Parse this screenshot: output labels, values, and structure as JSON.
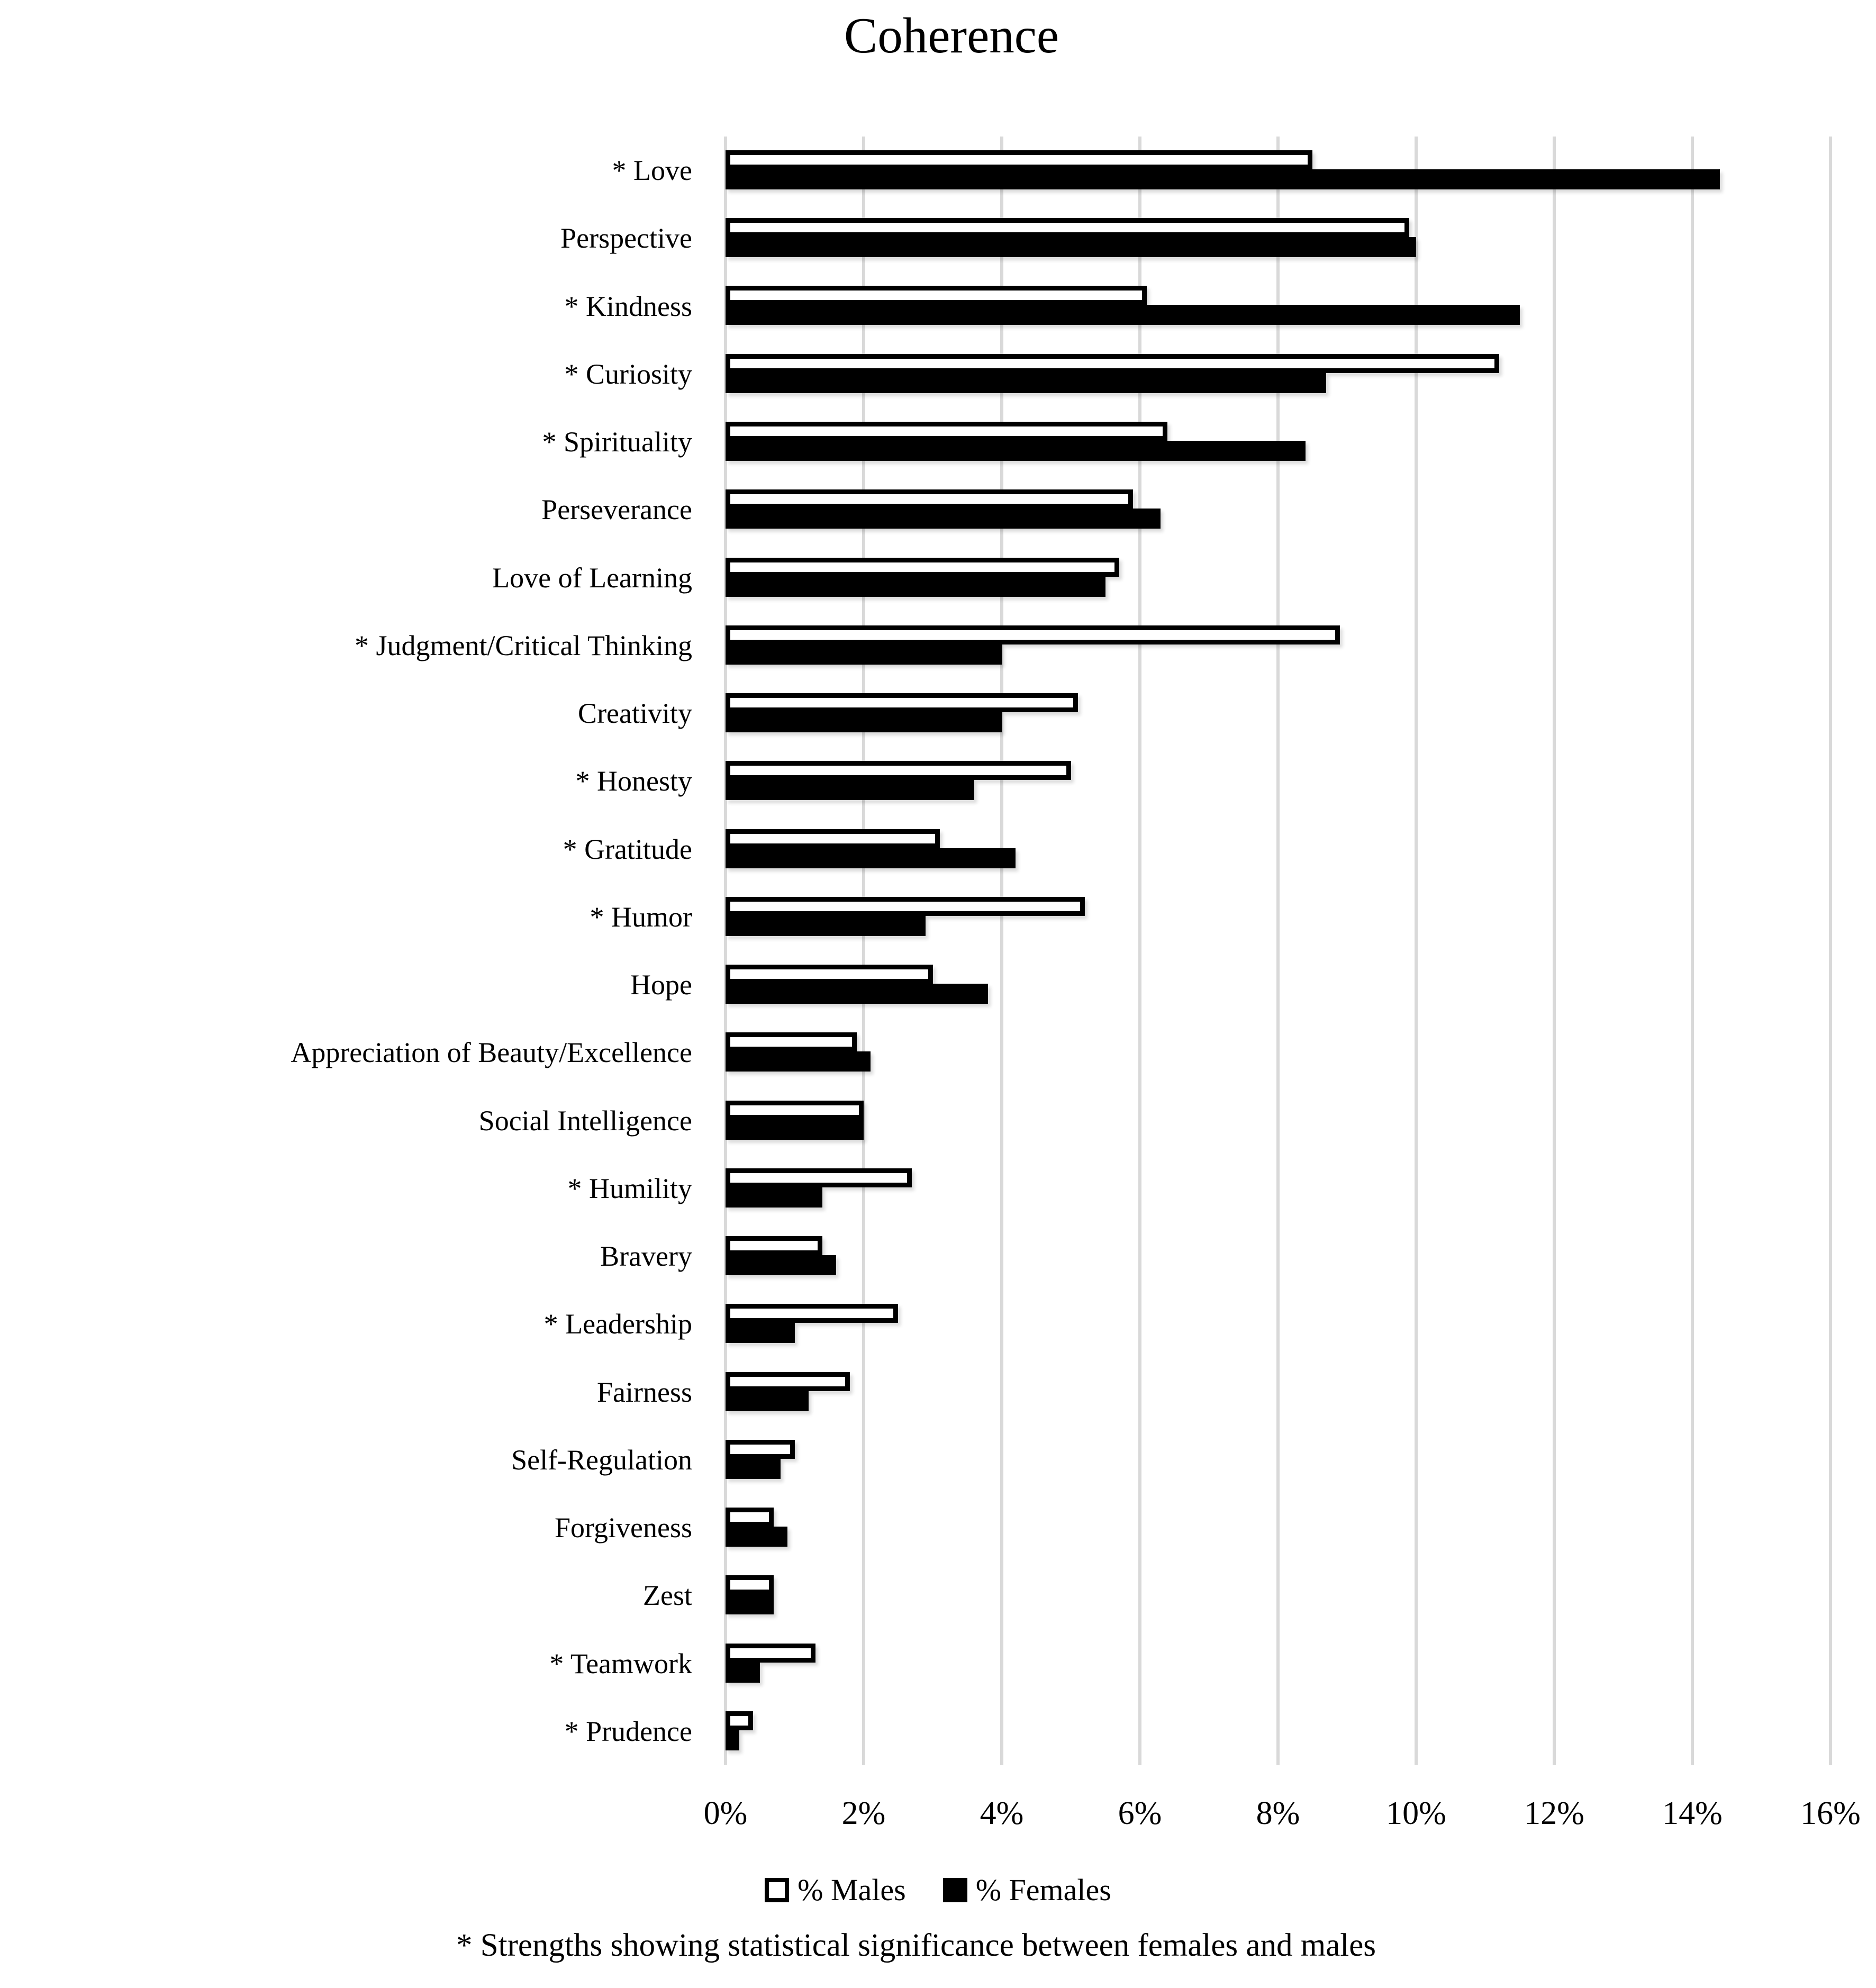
{
  "title": "Coherence",
  "footnote": "* Strengths showing statistical significance between females and males",
  "colors": {
    "male_fill": "#ffffff",
    "female_fill": "#000000",
    "bar_border": "#000000",
    "gridline": "#d9d9d9",
    "text": "#000000"
  },
  "chart_data": {
    "type": "bar",
    "orientation": "horizontal",
    "title": "Coherence",
    "categories": [
      "* Love",
      "Perspective",
      "* Kindness",
      "* Curiosity",
      "* Spirituality",
      "Perseverance",
      "Love of Learning",
      "* Judgment/Critical Thinking",
      "Creativity",
      "* Honesty",
      "* Gratitude",
      "* Humor",
      "Hope",
      "Appreciation of Beauty/Excellence",
      "Social Intelligence",
      "* Humility",
      "Bravery",
      "* Leadership",
      "Fairness",
      "Self-Regulation",
      "Forgiveness",
      "Zest",
      "* Teamwork",
      "* Prudence"
    ],
    "series": [
      {
        "name": "% Males",
        "values": [
          8.5,
          9.9,
          6.1,
          11.2,
          6.4,
          5.9,
          5.7,
          8.9,
          5.1,
          5.0,
          3.1,
          5.2,
          3.0,
          1.9,
          2.0,
          2.7,
          1.4,
          2.5,
          1.8,
          1.0,
          0.7,
          0.7,
          1.3,
          0.4
        ]
      },
      {
        "name": "% Females",
        "values": [
          14.4,
          10.0,
          11.5,
          8.7,
          8.4,
          6.3,
          5.5,
          4.0,
          4.0,
          3.6,
          4.2,
          2.9,
          3.8,
          2.1,
          2.0,
          1.4,
          1.6,
          1.0,
          1.2,
          0.8,
          0.9,
          0.7,
          0.5,
          0.2
        ]
      }
    ],
    "xlim": [
      0,
      16
    ],
    "x_ticks": [
      "0%",
      "2%",
      "4%",
      "6%",
      "8%",
      "10%",
      "12%",
      "14%",
      "16%"
    ],
    "grid": true,
    "legend_position": "bottom",
    "significance_marker": "*"
  }
}
